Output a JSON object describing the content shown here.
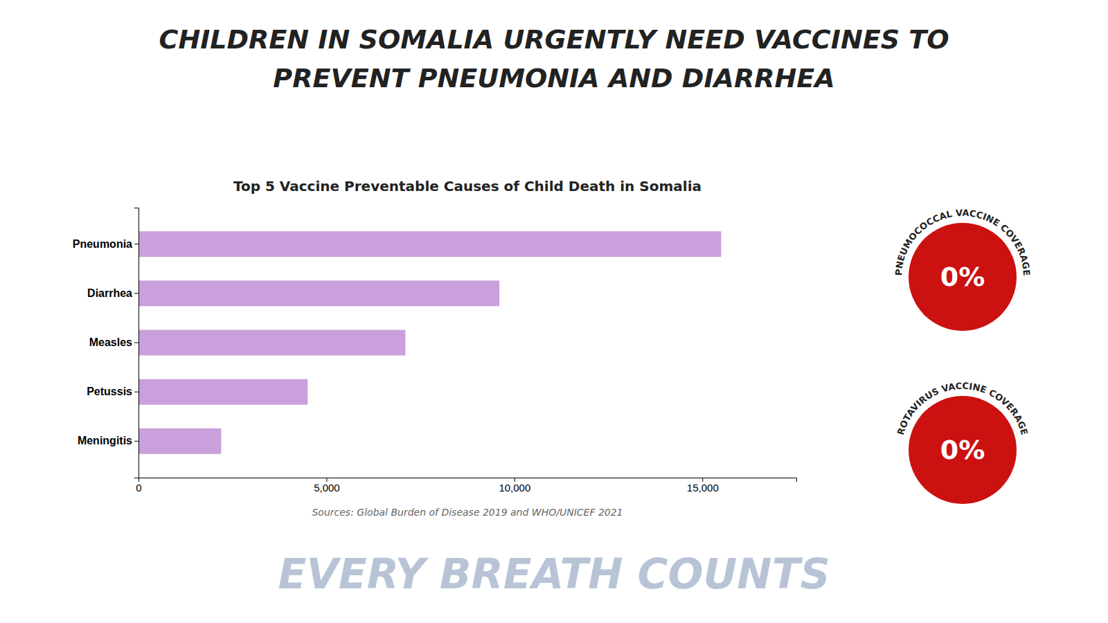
{
  "chart_data": {
    "type": "bar",
    "orientation": "horizontal",
    "title": [
      "CHILDREN IN SOMALIA URGENTLY NEED VACCINES TO",
      "PREVENT PNEUMONIA AND DIARRHEA"
    ],
    "subtitle": "Top 5 Vaccine Preventable Causes of Child Death in Somalia",
    "categories": [
      "Pneumonia",
      "Diarrhea",
      "Measles",
      "Petussis",
      "Meningitis"
    ],
    "values": [
      15500,
      9600,
      7100,
      4500,
      2200
    ],
    "color": "#c9a0dc",
    "xlim": [
      0,
      17500
    ],
    "xticks": [
      0,
      {
        "value": 5000,
        "label": "5,000"
      },
      {
        "value": 10000,
        "label": "10,000"
      },
      {
        "value": 15000,
        "label": "15,000"
      }
    ],
    "grid": false,
    "annotations": [
      {
        "text": "Sources: Global Burden of Disease 2019 and WHO/UNICEF 2021"
      },
      {
        "text": "EVERY BREATH COUNTS"
      },
      {
        "text": "0%",
        "label": "PNEUMOCOCCAL VACCINE COVERAGE",
        "color": "#cc1111"
      },
      {
        "text": "0%",
        "label": "ROTAVIRUS VACCINE COVERAGE",
        "color": "#cc1111"
      }
    ]
  }
}
